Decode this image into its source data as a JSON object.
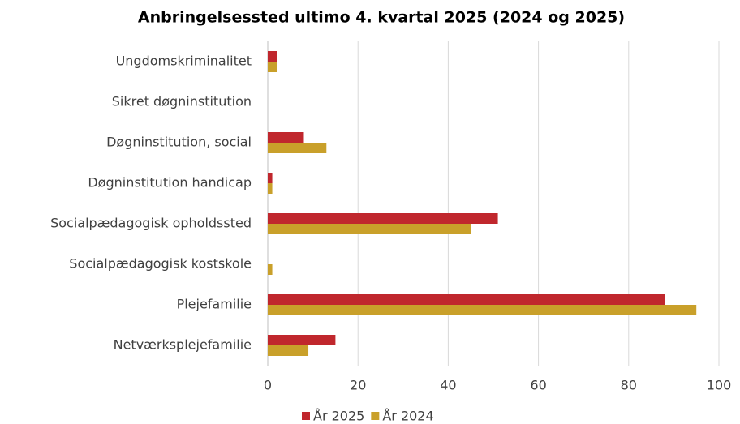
{
  "chart_data": {
    "type": "barh",
    "title": "Anbringelsessted ultimo 4. kvartal 2025 (2024 og 2025)",
    "categories": [
      "Ungdomskriminalitet",
      "Sikret døgninstitution",
      "Døgninstitution, social",
      "Døgninstitution handicap",
      "Socialpædagogisk opholdssted",
      "Socialpædagogisk kostskole",
      "Plejefamilie",
      "Netværksplejefamilie"
    ],
    "series": [
      {
        "name": "År 2025",
        "color": "#c0272d",
        "values": [
          2,
          0,
          8,
          1,
          51,
          0,
          88,
          15
        ]
      },
      {
        "name": "År 2024",
        "color": "#c9a02a",
        "values": [
          2,
          0,
          13,
          1,
          45,
          1,
          95,
          9
        ]
      }
    ],
    "xlim": [
      0,
      100
    ],
    "xticks": [
      0,
      20,
      40,
      60,
      80,
      100
    ],
    "grid": true,
    "legend": "bottom"
  }
}
